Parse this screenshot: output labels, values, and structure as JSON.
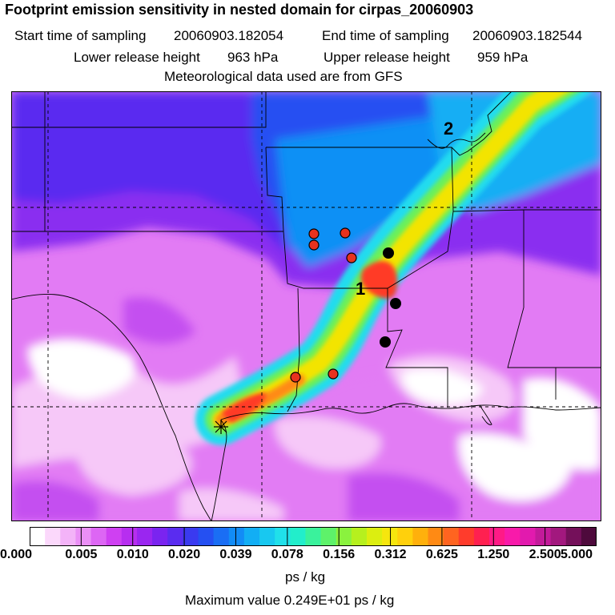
{
  "header": {
    "title": "Footprint emission sensitivity in nested domain for cirpas_20060903",
    "start_label": "Start time of sampling",
    "start_value": "20060903.182054",
    "end_label": "End time of sampling",
    "end_value": "20060903.182544",
    "lower_label": "Lower release height",
    "lower_value": "963 hPa",
    "upper_label": "Upper release height",
    "upper_value": "959 hPa",
    "met_line": "Meteorological data used are from GFS"
  },
  "map": {
    "label_1": "1",
    "label_2": "2",
    "plume_colors": {
      "edge": "#21dcef",
      "mid": "#6af05a",
      "core": "#f3e400",
      "hot": "#ff3b28"
    },
    "background_colors": [
      "#ffffff",
      "#f6c8f8",
      "#e27bf4",
      "#c44ff0",
      "#8a2ef0",
      "#3b40f0",
      "#1090f5"
    ]
  },
  "colorbar": {
    "tick_labels": [
      "0.000",
      "0.005",
      "0.010",
      "0.020",
      "0.039",
      "0.078",
      "0.156",
      "0.312",
      "0.625",
      "1.250",
      "2.500",
      "5.000"
    ],
    "colors": [
      "#ffffff",
      "#fbd8fb",
      "#f3b3f8",
      "#ea8ff6",
      "#dd66f4",
      "#cf40f2",
      "#b72ef0",
      "#9a26f0",
      "#7a24f0",
      "#5a2cf0",
      "#3a3af0",
      "#2550f2",
      "#1a6ef4",
      "#128cf6",
      "#12aef4",
      "#18c8f0",
      "#20e0ea",
      "#22eecb",
      "#3af29c",
      "#5ef26a",
      "#8af23e",
      "#b6f01e",
      "#dcee10",
      "#f6e60e",
      "#ffd00c",
      "#ffb00c",
      "#ff8a14",
      "#ff6420",
      "#ff3c2c",
      "#ff2050",
      "#ff1a86",
      "#f81aaa",
      "#e21aae",
      "#c31a9a",
      "#a2187e",
      "#74105a",
      "#4e0a3c"
    ],
    "unit_label": "ps / kg",
    "max_label": "Maximum value  0.249E+01 ps / kg"
  }
}
